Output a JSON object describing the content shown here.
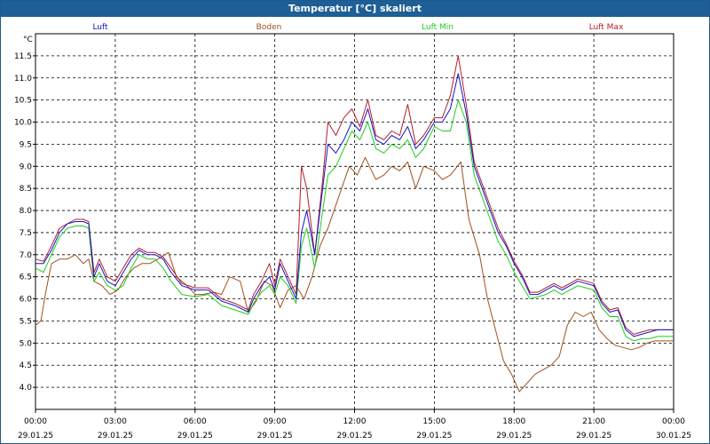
{
  "window": {
    "title": "Temperatur [°C] skaliert"
  },
  "chart_data": {
    "type": "line",
    "title": "Temperatur [°C] skaliert",
    "ylabel": "°C",
    "xlabel": "",
    "ylim": [
      3.5,
      12.0
    ],
    "yticks": [
      4.0,
      4.5,
      5.0,
      5.5,
      6.0,
      6.5,
      7.0,
      7.5,
      8.0,
      8.5,
      9.0,
      9.5,
      10.0,
      10.5,
      11.0,
      11.5
    ],
    "xlim": [
      0,
      24
    ],
    "xticks": [
      {
        "time": "00:00",
        "date": "29.01.25"
      },
      {
        "time": "03:00",
        "date": "29.01.25"
      },
      {
        "time": "06:00",
        "date": "29.01.25"
      },
      {
        "time": "09:00",
        "date": "29.01.25"
      },
      {
        "time": "12:00",
        "date": "29.01.25"
      },
      {
        "time": "15:00",
        "date": "29.01.25"
      },
      {
        "time": "18:00",
        "date": "29.01.25"
      },
      {
        "time": "21:00",
        "date": "29.01.25"
      },
      {
        "time": "00:00",
        "date": "30.01.25"
      }
    ],
    "grid": true,
    "series": [
      {
        "name": "Luft",
        "color": "#1414c8",
        "x": [
          0,
          0.3,
          0.6,
          0.9,
          1.2,
          1.5,
          1.8,
          2.0,
          2.2,
          2.4,
          2.7,
          3.0,
          3.3,
          3.6,
          3.9,
          4.2,
          4.5,
          4.8,
          5.1,
          5.5,
          6.0,
          6.5,
          7.0,
          7.5,
          8.0,
          8.2,
          8.5,
          8.8,
          9.0,
          9.2,
          9.5,
          9.8,
          10.0,
          10.2,
          10.5,
          10.8,
          11.0,
          11.3,
          11.6,
          11.9,
          12.2,
          12.5,
          12.8,
          13.1,
          13.4,
          13.7,
          14.0,
          14.3,
          14.6,
          15.0,
          15.3,
          15.6,
          15.9,
          16.2,
          16.5,
          16.8,
          17.1,
          17.4,
          17.7,
          18.0,
          18.3,
          18.6,
          18.9,
          19.2,
          19.5,
          19.8,
          20.1,
          20.4,
          20.7,
          21.0,
          21.3,
          21.6,
          21.9,
          22.2,
          22.5,
          22.8,
          23.1,
          23.4,
          23.7,
          24.0
        ],
        "y": [
          6.8,
          6.8,
          7.1,
          7.5,
          7.7,
          7.75,
          7.75,
          7.7,
          6.5,
          6.8,
          6.4,
          6.3,
          6.6,
          6.9,
          7.1,
          7.0,
          7.0,
          6.9,
          6.6,
          6.3,
          6.2,
          6.2,
          5.95,
          5.85,
          5.7,
          6.0,
          6.3,
          6.5,
          6.2,
          6.8,
          6.4,
          6.0,
          7.5,
          8.0,
          7.0,
          8.5,
          9.5,
          9.3,
          9.6,
          10.0,
          9.8,
          10.3,
          9.6,
          9.5,
          9.7,
          9.6,
          9.9,
          9.4,
          9.6,
          10.0,
          10.0,
          10.3,
          11.1,
          10.2,
          9.0,
          8.5,
          8.0,
          7.5,
          7.2,
          6.8,
          6.5,
          6.1,
          6.1,
          6.2,
          6.3,
          6.2,
          6.3,
          6.4,
          6.35,
          6.3,
          5.9,
          5.7,
          5.75,
          5.3,
          5.15,
          5.2,
          5.25,
          5.3,
          5.3,
          5.3
        ]
      },
      {
        "name": "Boden",
        "color": "#a0501e",
        "x": [
          0,
          0.2,
          0.4,
          0.6,
          0.9,
          1.2,
          1.5,
          1.8,
          2.0,
          2.2,
          2.5,
          2.8,
          3.1,
          3.4,
          3.7,
          4.0,
          4.3,
          4.6,
          5.0,
          5.3,
          5.7,
          6.0,
          6.3,
          6.7,
          7.0,
          7.3,
          7.7,
          8.0,
          8.3,
          8.6,
          8.9,
          9.2,
          9.5,
          9.8,
          10.1,
          10.4,
          10.7,
          11.0,
          11.4,
          11.8,
          12.1,
          12.4,
          12.8,
          13.1,
          13.4,
          13.7,
          14.0,
          14.3,
          14.6,
          15.0,
          15.3,
          15.6,
          16.0,
          16.3,
          16.7,
          17.0,
          17.3,
          17.6,
          17.9,
          18.2,
          18.5,
          18.8,
          19.1,
          19.4,
          19.7,
          20.0,
          20.3,
          20.6,
          20.9,
          21.2,
          21.5,
          21.8,
          22.1,
          22.4,
          22.7,
          23.0,
          23.3,
          23.6,
          24.0
        ],
        "y": [
          5.4,
          5.5,
          6.2,
          6.8,
          6.9,
          6.9,
          7.0,
          6.8,
          6.9,
          6.4,
          6.3,
          6.1,
          6.2,
          6.5,
          6.7,
          6.8,
          6.8,
          6.9,
          7.05,
          6.5,
          6.3,
          6.1,
          6.1,
          6.15,
          6.1,
          6.5,
          6.4,
          5.7,
          5.95,
          6.4,
          6.3,
          5.8,
          6.2,
          6.3,
          6.0,
          6.5,
          7.2,
          7.6,
          8.3,
          9.0,
          8.8,
          9.2,
          8.7,
          8.8,
          9.0,
          8.9,
          9.1,
          8.5,
          9.0,
          8.9,
          8.7,
          8.8,
          9.1,
          7.8,
          7.0,
          6.0,
          5.3,
          4.6,
          4.3,
          3.9,
          4.1,
          4.3,
          4.4,
          4.5,
          4.7,
          5.4,
          5.7,
          5.6,
          5.7,
          5.3,
          5.1,
          4.95,
          4.9,
          4.85,
          4.9,
          5.0,
          5.05,
          5.05,
          5.05
        ]
      },
      {
        "name": "Luft Min",
        "color": "#1ecc1e",
        "x": [
          0,
          0.3,
          0.6,
          0.9,
          1.2,
          1.5,
          1.8,
          2.0,
          2.2,
          2.4,
          2.7,
          3.0,
          3.3,
          3.6,
          3.9,
          4.2,
          4.5,
          4.8,
          5.1,
          5.5,
          6.0,
          6.5,
          7.0,
          7.5,
          8.0,
          8.2,
          8.5,
          8.8,
          9.0,
          9.2,
          9.5,
          9.8,
          10.0,
          10.2,
          10.5,
          10.8,
          11.0,
          11.3,
          11.6,
          11.9,
          12.2,
          12.5,
          12.8,
          13.1,
          13.4,
          13.7,
          14.0,
          14.3,
          14.6,
          15.0,
          15.3,
          15.6,
          15.9,
          16.2,
          16.5,
          16.8,
          17.1,
          17.4,
          17.7,
          18.0,
          18.3,
          18.6,
          18.9,
          19.2,
          19.5,
          19.8,
          20.1,
          20.4,
          20.7,
          21.0,
          21.3,
          21.6,
          21.9,
          22.2,
          22.5,
          22.8,
          23.1,
          23.4,
          23.7,
          24.0
        ],
        "y": [
          6.7,
          6.6,
          7.0,
          7.4,
          7.6,
          7.65,
          7.65,
          7.6,
          6.4,
          6.6,
          6.3,
          6.2,
          6.3,
          6.7,
          7.0,
          6.9,
          6.9,
          6.7,
          6.4,
          6.1,
          6.05,
          6.1,
          5.85,
          5.75,
          5.65,
          5.9,
          6.15,
          6.3,
          6.1,
          6.5,
          6.3,
          5.9,
          7.2,
          7.6,
          6.7,
          8.0,
          8.8,
          9.0,
          9.4,
          9.8,
          9.6,
          10.0,
          9.4,
          9.3,
          9.5,
          9.4,
          9.6,
          9.2,
          9.4,
          9.9,
          9.8,
          9.8,
          10.5,
          10.0,
          8.8,
          8.3,
          7.8,
          7.3,
          7.0,
          6.6,
          6.3,
          6.0,
          6.05,
          6.1,
          6.2,
          6.1,
          6.2,
          6.3,
          6.25,
          6.2,
          5.8,
          5.6,
          5.6,
          5.15,
          5.05,
          5.1,
          5.1,
          5.15,
          5.15,
          5.15
        ]
      },
      {
        "name": "Luft Max",
        "color": "#b41e2d",
        "x": [
          0,
          0.3,
          0.6,
          0.9,
          1.2,
          1.5,
          1.8,
          2.0,
          2.2,
          2.4,
          2.7,
          3.0,
          3.3,
          3.6,
          3.9,
          4.2,
          4.5,
          4.8,
          5.1,
          5.5,
          6.0,
          6.5,
          7.0,
          7.5,
          8.0,
          8.2,
          8.5,
          8.8,
          9.0,
          9.2,
          9.5,
          9.8,
          10.0,
          10.2,
          10.5,
          10.8,
          11.0,
          11.3,
          11.6,
          11.9,
          12.2,
          12.5,
          12.8,
          13.1,
          13.4,
          13.7,
          14.0,
          14.3,
          14.6,
          15.0,
          15.3,
          15.6,
          15.9,
          16.2,
          16.5,
          16.8,
          17.1,
          17.4,
          17.7,
          18.0,
          18.3,
          18.6,
          18.9,
          19.2,
          19.5,
          19.8,
          20.1,
          20.4,
          20.7,
          21.0,
          21.3,
          21.6,
          21.9,
          22.2,
          22.5,
          22.8,
          23.1,
          23.4,
          23.7,
          24.0
        ],
        "y": [
          6.9,
          6.85,
          7.2,
          7.6,
          7.7,
          7.8,
          7.8,
          7.75,
          6.6,
          6.9,
          6.5,
          6.4,
          6.7,
          7.0,
          7.15,
          7.05,
          7.05,
          6.95,
          6.7,
          6.35,
          6.25,
          6.25,
          6.0,
          5.9,
          5.75,
          6.1,
          6.4,
          6.8,
          6.3,
          6.9,
          6.5,
          6.1,
          9.0,
          8.5,
          7.0,
          8.7,
          10.0,
          9.7,
          10.1,
          10.3,
          9.9,
          10.5,
          9.7,
          9.6,
          9.8,
          9.7,
          10.4,
          9.5,
          9.7,
          10.1,
          10.1,
          10.6,
          11.5,
          10.4,
          9.1,
          8.6,
          8.1,
          7.6,
          7.25,
          6.85,
          6.55,
          6.15,
          6.15,
          6.25,
          6.35,
          6.25,
          6.35,
          6.45,
          6.4,
          6.35,
          5.95,
          5.75,
          5.8,
          5.35,
          5.2,
          5.25,
          5.3,
          5.3,
          5.3,
          5.3
        ]
      }
    ]
  }
}
